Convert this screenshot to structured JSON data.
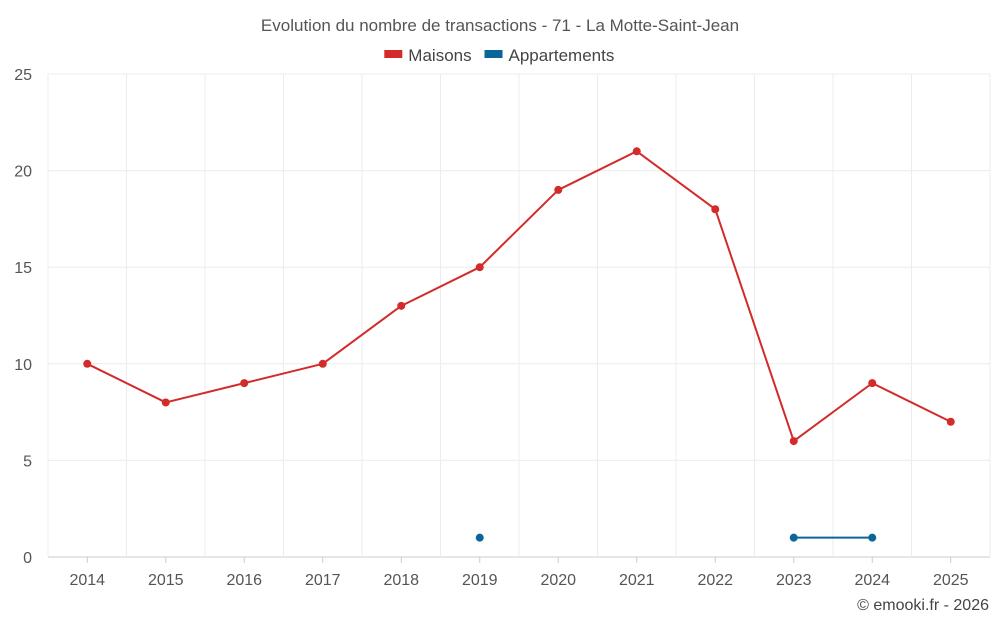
{
  "chart_data": {
    "type": "line",
    "title": "Evolution du nombre de transactions - 71 - La Motte-Saint-Jean",
    "categories": [
      "2014",
      "2015",
      "2016",
      "2017",
      "2018",
      "2019",
      "2020",
      "2021",
      "2022",
      "2023",
      "2024",
      "2025"
    ],
    "series": [
      {
        "name": "Maisons",
        "color": "#d32a2a",
        "values": [
          10,
          8,
          9,
          10,
          13,
          15,
          19,
          21,
          18,
          6,
          9,
          7
        ]
      },
      {
        "name": "Appartements",
        "color": "#0a6599",
        "values": [
          null,
          null,
          null,
          null,
          null,
          1,
          null,
          null,
          null,
          1,
          1,
          null
        ]
      }
    ],
    "y_ticks": [
      0,
      5,
      10,
      15,
      20,
      25
    ],
    "ylim": [
      0,
      25
    ],
    "xlabel": "",
    "ylabel": "",
    "legend_position": "top-center",
    "grid": true
  },
  "credit": "© emooki.fr - 2026"
}
